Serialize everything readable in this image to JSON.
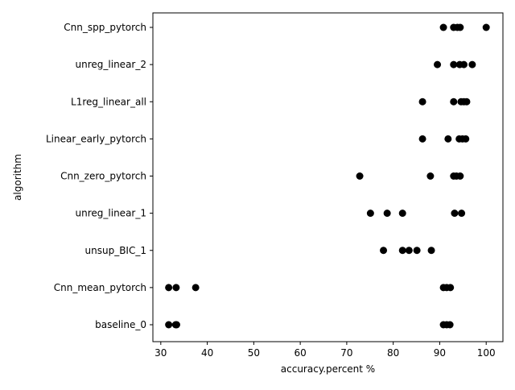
{
  "chart_data": {
    "type": "scatter",
    "title": "",
    "xlabel": "accuracy.percent %",
    "ylabel": "algorithm",
    "xlim": [
      28.3,
      103.6
    ],
    "xticks": [
      30,
      40,
      50,
      60,
      70,
      80,
      90,
      100
    ],
    "grid": false,
    "marker_color": "#000000",
    "categories": [
      "Cnn_spp_pytorch",
      "unreg_linear_2",
      "L1reg_linear_all",
      "Linear_early_pytorch",
      "Cnn_zero_pytorch",
      "unreg_linear_1",
      "unsup_BIC_1",
      "Cnn_mean_pytorch",
      "baseline_0"
    ],
    "points": [
      {
        "category": "Cnn_spp_pytorch",
        "values": [
          90.8,
          93.0,
          93.8,
          94.4,
          100.0
        ]
      },
      {
        "category": "unreg_linear_2",
        "values": [
          89.5,
          93.0,
          94.3,
          95.2,
          97.0
        ]
      },
      {
        "category": "L1reg_linear_all",
        "values": [
          86.3,
          93.0,
          94.6,
          95.2,
          95.8
        ]
      },
      {
        "category": "Linear_early_pytorch",
        "values": [
          86.3,
          91.8,
          94.2,
          94.9,
          95.6
        ]
      },
      {
        "category": "Cnn_zero_pytorch",
        "values": [
          72.8,
          88.0,
          93.0,
          93.6,
          94.4
        ]
      },
      {
        "category": "unreg_linear_1",
        "values": [
          75.1,
          78.7,
          82.0,
          93.2,
          94.7
        ]
      },
      {
        "category": "unsup_BIC_1",
        "values": [
          77.9,
          82.0,
          83.4,
          85.1,
          88.2
        ]
      },
      {
        "category": "Cnn_mean_pytorch",
        "values": [
          31.7,
          33.3,
          37.5,
          90.8,
          91.5,
          92.3
        ]
      },
      {
        "category": "baseline_0",
        "values": [
          31.7,
          33.2,
          33.4,
          90.8,
          91.5,
          92.2
        ]
      }
    ]
  }
}
